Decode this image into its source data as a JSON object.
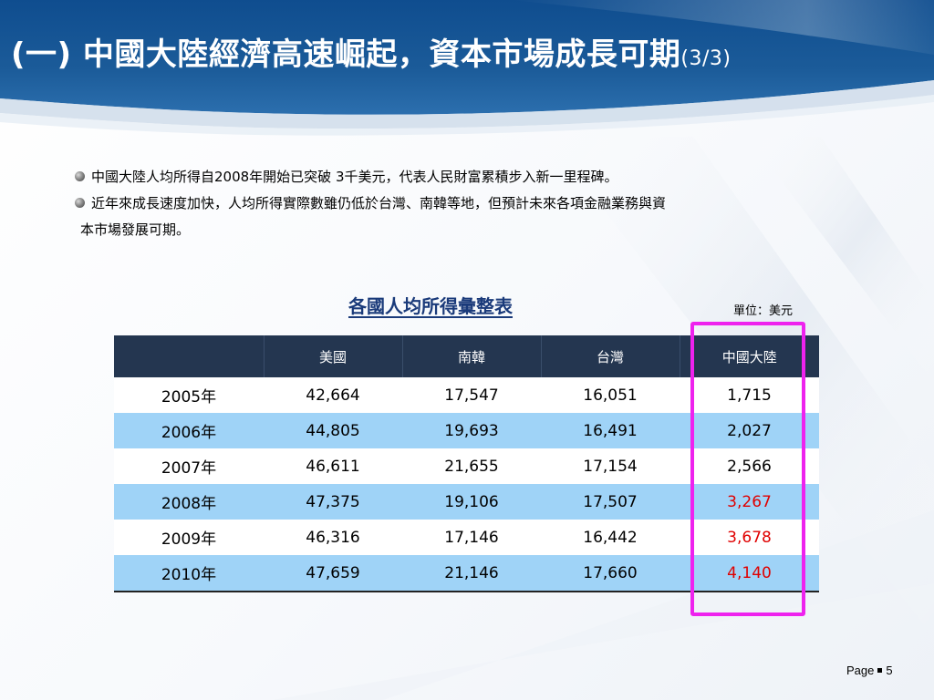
{
  "slide": {
    "title_main": "(一) 中國大陸經濟高速崛起，資本市場成長可期",
    "title_suffix": "(3/3)"
  },
  "bullets": [
    {
      "text": "中國大陸人均所得自2008年開始已突破 3千美元，代表人民財富累積步入新一里程碑。"
    },
    {
      "text": "近年來成長速度加快，人均所得實際數雖仍低於台灣、南韓等地，但預計未來各項金融業務與資",
      "continuation": "本市場發展可期。"
    }
  ],
  "table": {
    "caption": "各國人均所得彙整表",
    "unit": "單位：美元",
    "headers": [
      "",
      "美國",
      "南韓",
      "台灣",
      "中國大陸"
    ],
    "rows": [
      {
        "year": "2005年",
        "values": [
          "42,664",
          "17,547",
          "16,051",
          "1,715"
        ],
        "china_emphasis": false
      },
      {
        "year": "2006年",
        "values": [
          "44,805",
          "19,693",
          "16,491",
          "2,027"
        ],
        "china_emphasis": false
      },
      {
        "year": "2007年",
        "values": [
          "46,611",
          "21,655",
          "17,154",
          "2,566"
        ],
        "china_emphasis": false
      },
      {
        "year": "2008年",
        "values": [
          "47,375",
          "19,106",
          "17,507",
          "3,267"
        ],
        "china_emphasis": true
      },
      {
        "year": "2009年",
        "values": [
          "46,316",
          "17,146",
          "16,442",
          "3,678"
        ],
        "china_emphasis": true
      },
      {
        "year": "2010年",
        "values": [
          "47,659",
          "21,146",
          "17,660",
          "4,140"
        ],
        "china_emphasis": true
      }
    ]
  },
  "colors": {
    "header_band": "#1b5b99",
    "table_header": "#243650",
    "row_alt": "#9fd3f7",
    "highlight_box": "#ee22ee",
    "emphasis_text": "#e00000",
    "caption": "#1a3a7a"
  },
  "footer": {
    "page_label": "Page",
    "page_number": "5"
  }
}
